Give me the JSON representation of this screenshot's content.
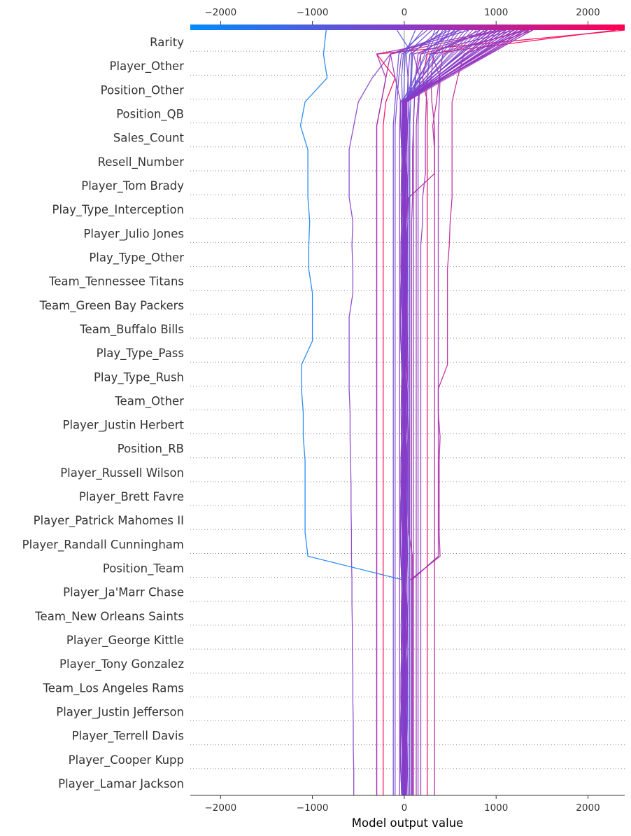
{
  "chart_data": {
    "type": "decision_plot",
    "xlabel": "Model output value",
    "xlim": [
      -2330,
      2400
    ],
    "x_ticks": [
      -2000,
      -1000,
      0,
      1000,
      2000
    ],
    "x_tick_labels": [
      "−2000",
      "−1000",
      "0",
      "1000",
      "2000"
    ],
    "base_value": 0,
    "colormap": [
      "#008bfb",
      "#ff0052"
    ],
    "features": [
      "Rarity",
      "Player_Other",
      "Position_Other",
      "Position_QB",
      "Sales_Count",
      "Resell_Number",
      "Player_Tom Brady",
      "Play_Type_Interception",
      "Player_Julio Jones",
      "Play_Type_Other",
      "Team_Tennessee Titans",
      "Team_Green Bay Packers",
      "Team_Buffalo Bills",
      "Play_Type_Pass",
      "Play_Type_Rush",
      "Team_Other",
      "Player_Justin Herbert",
      "Position_RB",
      "Player_Russell Wilson",
      "Player_Brett Favre",
      "Player_Patrick Mahomes II",
      "Player_Randall Cunningham",
      "Position_Team",
      "Player_Ja'Marr Chase",
      "Team_New Orleans Saints",
      "Player_George Kittle",
      "Player_Tony Gonzalez",
      "Team_Los Angeles Rams",
      "Player_Justin Jefferson",
      "Player_Terrell Davis",
      "Player_Cooper Kupp",
      "Player_Lamar Jackson"
    ],
    "series_note_order": "values listed bottom-to-top (bottom edge, Player_Lamar Jackson ... Rarity, top edge)",
    "series": [
      {
        "values": [
          -550,
          -550,
          -555,
          -555,
          -560,
          -560,
          -565,
          -565,
          -570,
          -570,
          -575,
          -575,
          -580,
          -580,
          -585,
          -590,
          -590,
          -600,
          -600,
          -600,
          -600,
          -560,
          -560,
          -570,
          -560,
          -600,
          -600,
          -600,
          -550,
          -500,
          -350,
          -150,
          600
        ]
      },
      {
        "values": [
          0,
          0,
          0,
          0,
          0,
          0,
          0,
          0,
          0,
          0,
          -1050,
          -1080,
          -1080,
          -1080,
          -1080,
          -1100,
          -1100,
          -1120,
          -1120,
          -1000,
          -1000,
          -1000,
          -1040,
          -1040,
          -1030,
          -1050,
          -1050,
          -1050,
          -1130,
          -1080,
          -840,
          -880,
          -850
        ]
      },
      {
        "values": [
          -230,
          -230,
          -230,
          -230,
          -230,
          -230,
          -230,
          -230,
          -230,
          -230,
          -230,
          -230,
          -230,
          -230,
          -230,
          -230,
          -230,
          -230,
          -230,
          -230,
          -230,
          -230,
          -230,
          -230,
          -230,
          -230,
          -230,
          -230,
          -230,
          -200,
          -100,
          -300,
          2400
        ]
      },
      {
        "values": [
          250,
          250,
          250,
          250,
          250,
          250,
          250,
          250,
          250,
          250,
          250,
          250,
          250,
          250,
          250,
          250,
          250,
          250,
          250,
          250,
          250,
          250,
          250,
          250,
          250,
          250,
          250,
          250,
          250,
          250,
          200,
          250,
          2300
        ]
      },
      {
        "values": [
          60,
          60,
          60,
          60,
          60,
          60,
          60,
          60,
          60,
          60,
          390,
          380,
          380,
          380,
          380,
          390,
          370,
          370,
          470,
          470,
          470,
          470,
          470,
          490,
          500,
          520,
          520,
          520,
          520,
          520,
          580,
          650,
          1400
        ]
      },
      {
        "values": [
          90,
          90,
          90,
          90,
          90,
          90,
          90,
          90,
          90,
          90,
          90,
          50,
          50,
          50,
          50,
          50,
          40,
          40,
          30,
          30,
          30,
          30,
          30,
          30,
          40,
          50,
          330,
          330,
          310,
          350,
          380,
          420,
          1300
        ]
      },
      {
        "values": [
          180,
          180,
          180,
          180,
          180,
          180,
          180,
          180,
          180,
          180,
          180,
          180,
          180,
          180,
          180,
          180,
          180,
          180,
          180,
          180,
          180,
          180,
          180,
          180,
          200,
          200,
          230,
          230,
          230,
          240,
          250,
          280,
          900
        ]
      },
      {
        "values": [
          -50,
          -50,
          -50,
          -50,
          -50,
          -50,
          -50,
          -50,
          -50,
          -50,
          -50,
          -50,
          -50,
          -50,
          -50,
          -50,
          -50,
          -50,
          -50,
          -50,
          -50,
          -50,
          -50,
          -50,
          -50,
          -50,
          -50,
          -50,
          -50,
          -40,
          -100,
          -150,
          700
        ]
      },
      {
        "values": [
          80,
          80,
          80,
          80,
          80,
          80,
          80,
          80,
          80,
          80,
          80,
          80,
          80,
          80,
          80,
          80,
          80,
          80,
          80,
          80,
          80,
          80,
          80,
          80,
          80,
          90,
          90,
          90,
          100,
          110,
          120,
          180,
          1200
        ]
      },
      {
        "values": [
          130,
          130,
          130,
          130,
          130,
          130,
          130,
          130,
          130,
          130,
          130,
          130,
          130,
          130,
          130,
          130,
          130,
          130,
          130,
          130,
          130,
          130,
          130,
          130,
          130,
          130,
          130,
          130,
          130,
          150,
          170,
          100,
          1000
        ]
      },
      {
        "values": [
          20,
          20,
          20,
          20,
          20,
          20,
          20,
          20,
          20,
          20,
          20,
          20,
          20,
          20,
          20,
          20,
          20,
          20,
          20,
          20,
          20,
          20,
          20,
          20,
          20,
          20,
          20,
          20,
          20,
          30,
          40,
          20,
          300
        ]
      },
      {
        "values": [
          -10,
          -10,
          -10,
          -10,
          -10,
          -10,
          -10,
          -10,
          -10,
          -10,
          -10,
          -10,
          -10,
          -10,
          -10,
          -10,
          -10,
          -10,
          -10,
          -10,
          -10,
          -10,
          -10,
          -10,
          -10,
          -10,
          -10,
          -10,
          -10,
          -20,
          -30,
          -10,
          200
        ]
      },
      {
        "values": [
          -300,
          -300,
          -300,
          -300,
          -300,
          -300,
          -300,
          -300,
          -300,
          -300,
          -300,
          -300,
          -300,
          -300,
          -300,
          -300,
          -300,
          -300,
          -300,
          -300,
          -300,
          -300,
          -300,
          -300,
          -300,
          -300,
          -300,
          -300,
          -300,
          -250,
          -200,
          -150,
          1100
        ]
      },
      {
        "values": [
          -300,
          -300,
          -300,
          -300,
          -300,
          -300,
          -300,
          -300,
          -300,
          -300,
          -300,
          -300,
          -300,
          -300,
          -300,
          -300,
          -300,
          -300,
          -300,
          -300,
          -300,
          -300,
          -300,
          -300,
          -300,
          -300,
          -300,
          -300,
          -300,
          -250,
          -200,
          -300,
          1050
        ]
      },
      {
        "values": [
          330,
          330,
          330,
          330,
          330,
          330,
          330,
          330,
          330,
          330,
          330,
          330,
          330,
          330,
          330,
          330,
          330,
          330,
          330,
          330,
          330,
          330,
          330,
          330,
          330,
          330,
          330,
          330,
          330,
          300,
          290,
          320,
          1350
        ]
      },
      {
        "values": [
          -100,
          -100,
          -100,
          -100,
          -100,
          -100,
          -100,
          -100,
          -100,
          -100,
          -100,
          -100,
          -100,
          -100,
          -100,
          -100,
          -100,
          -100,
          -100,
          -100,
          -100,
          -100,
          -100,
          -100,
          -100,
          -100,
          -100,
          -100,
          -100,
          -80,
          -60,
          -30,
          500
        ]
      },
      {
        "values": [
          60,
          60,
          60,
          60,
          60,
          60,
          60,
          60,
          60,
          60,
          60,
          60,
          60,
          60,
          60,
          60,
          60,
          60,
          60,
          60,
          60,
          60,
          60,
          60,
          60,
          60,
          60,
          60,
          60,
          50,
          40,
          60,
          450
        ]
      },
      {
        "values": [
          150,
          150,
          150,
          150,
          150,
          150,
          150,
          150,
          150,
          150,
          150,
          150,
          150,
          150,
          150,
          150,
          150,
          150,
          150,
          150,
          150,
          150,
          150,
          150,
          150,
          150,
          150,
          150,
          150,
          160,
          170,
          180,
          550
        ]
      },
      {
        "values": [
          -5,
          -5,
          -5,
          -5,
          -5,
          -5,
          -5,
          -5,
          -5,
          -5,
          -5,
          -5,
          -5,
          -5,
          -5,
          -5,
          -5,
          -5,
          -5,
          -5,
          -5,
          -5,
          -5,
          -5,
          -5,
          -5,
          -5,
          -5,
          -5,
          -5,
          0,
          10,
          120
        ]
      },
      {
        "values": [
          40,
          40,
          40,
          40,
          40,
          40,
          40,
          40,
          40,
          40,
          40,
          40,
          40,
          40,
          40,
          40,
          40,
          40,
          40,
          40,
          40,
          40,
          40,
          40,
          40,
          40,
          40,
          40,
          40,
          50,
          70,
          80,
          380
        ]
      },
      {
        "values": [
          100,
          100,
          100,
          100,
          100,
          100,
          100,
          100,
          100,
          100,
          100,
          100,
          100,
          100,
          100,
          100,
          100,
          100,
          100,
          100,
          100,
          100,
          100,
          100,
          100,
          100,
          100,
          100,
          100,
          110,
          120,
          150,
          600
        ]
      },
      {
        "values": [
          -120,
          -120,
          -120,
          -120,
          -120,
          -120,
          -120,
          -120,
          -120,
          -120,
          -120,
          -120,
          -120,
          -120,
          -120,
          -120,
          -120,
          -120,
          -120,
          -120,
          -120,
          -120,
          -120,
          -120,
          -120,
          -120,
          -120,
          -120,
          -120,
          -100,
          -80,
          -60,
          250
        ]
      },
      {
        "values": [
          60,
          60,
          60,
          60,
          60,
          60,
          60,
          60,
          60,
          60,
          60,
          60,
          60,
          60,
          60,
          60,
          60,
          60,
          60,
          60,
          60,
          60,
          60,
          60,
          60,
          60,
          60,
          60,
          60,
          70,
          80,
          90,
          -80
        ]
      },
      {
        "values": [
          80,
          80,
          80,
          80,
          80,
          80,
          80,
          80,
          80,
          80,
          370,
          370,
          370,
          370,
          370,
          370,
          370,
          370,
          370,
          370,
          370,
          370,
          370,
          370,
          370,
          370,
          370,
          370,
          370,
          380,
          390,
          300,
          820
        ]
      }
    ]
  }
}
